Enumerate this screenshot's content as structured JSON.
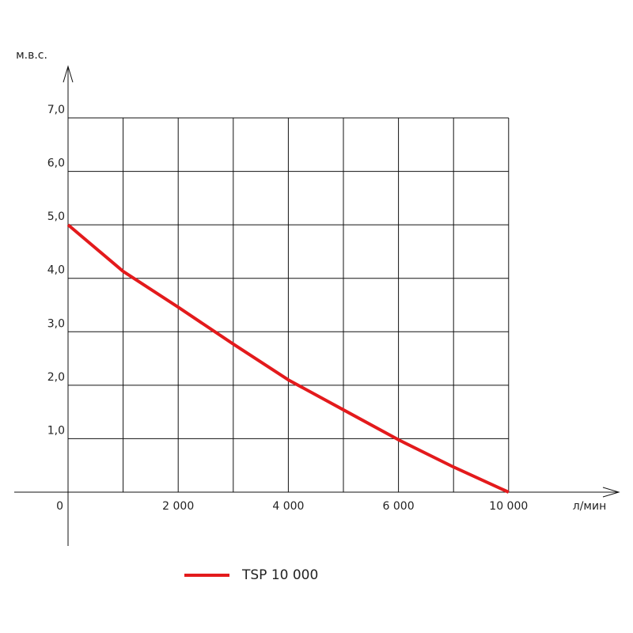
{
  "chart_data": {
    "type": "line",
    "y_label": "м.в.с.",
    "x_label": "л/мин",
    "categories": [
      "0",
      null,
      "2 000",
      null,
      "4 000",
      null,
      "6 000",
      null,
      "10 000"
    ],
    "series": [
      {
        "name": "TSP 10 000",
        "color": "#e31a1c",
        "values": [
          5.0,
          4.13,
          3.46,
          2.77,
          2.1,
          1.54,
          0.98,
          0.47,
          0
        ]
      }
    ],
    "ylim": [
      0,
      7
    ],
    "yticks": [
      {
        "value": 1,
        "label": "1,0"
      },
      {
        "value": 2,
        "label": "2,0"
      },
      {
        "value": 3,
        "label": "3,0"
      },
      {
        "value": 4,
        "label": "4,0"
      },
      {
        "value": 5,
        "label": "5,0"
      },
      {
        "value": 6,
        "label": "6,0"
      },
      {
        "value": 7,
        "label": "7,0"
      }
    ],
    "grid": true
  }
}
